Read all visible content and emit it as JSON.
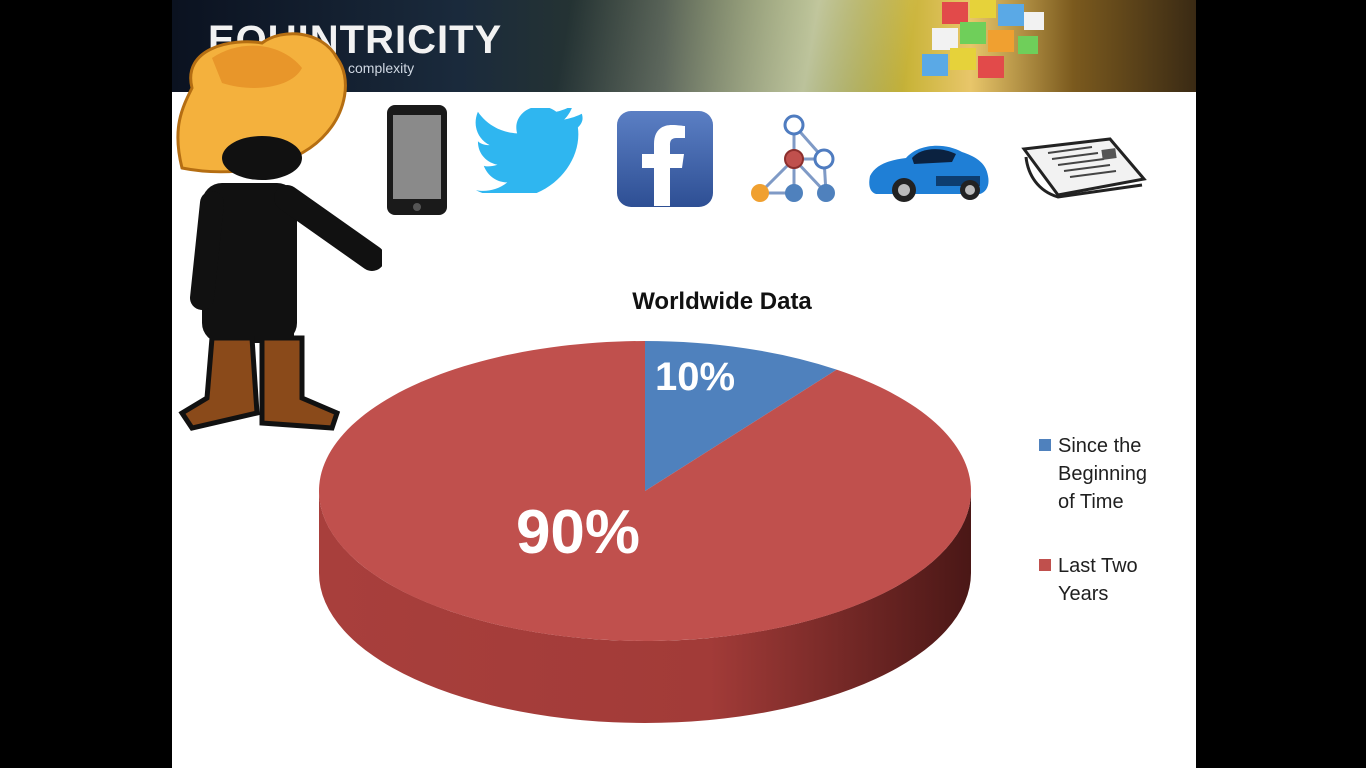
{
  "banner": {
    "brand": "EQUINTRICITY",
    "tagline": "complexity"
  },
  "icons": [
    "smartphone-icon",
    "twitter-bird-icon",
    "facebook-icon",
    "network-graph-icon",
    "sports-car-icon",
    "newspaper-icon"
  ],
  "colors": {
    "blue": "#4f81bd",
    "red": "#c0504d",
    "red_dark": "#8c2f2d"
  },
  "chart_data": {
    "type": "pie",
    "title": "Worldwide Data",
    "slices": [
      {
        "name": "Since the Beginning of Time",
        "value": 10,
        "label": "10%",
        "color": "#4f81bd"
      },
      {
        "name": "Last Two Years",
        "value": 90,
        "label": "90%",
        "color": "#c0504d"
      }
    ],
    "legend_position": "right",
    "style": "3d"
  },
  "legend": [
    {
      "lines": [
        "Since the",
        "Beginning",
        "of Time"
      ],
      "color": "#4f81bd"
    },
    {
      "lines": [
        "Last Two",
        "Years"
      ],
      "color": "#c0504d"
    }
  ]
}
